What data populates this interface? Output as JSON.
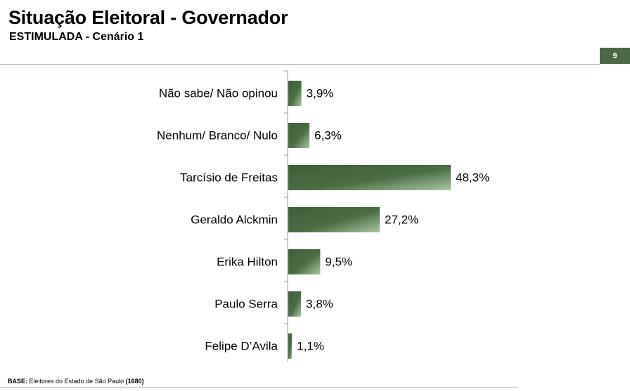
{
  "header": {
    "title": "Situação Eleitoral - Governador",
    "subtitle": "ESTIMULADA - Cenário 1",
    "page_number": "9"
  },
  "footer": {
    "base_label": "BASE:",
    "base_text": " Eleitores do Estado de São Paulo ",
    "base_count": "(1680)"
  },
  "colors": {
    "bar_dark": "#3f5e38",
    "bar_light": "#a9c7a2",
    "accent": "#4a6a44",
    "rule": "#9bb59a"
  },
  "chart_data": {
    "type": "bar",
    "orientation": "horizontal",
    "categories": [
      "Não sabe/ Não opinou",
      "Nenhum/ Branco/ Nulo",
      "Tarcísio de Freitas",
      "Geraldo Alckmin",
      "Erika Hilton",
      "Paulo Serra",
      "Felipe D’Avila"
    ],
    "values": [
      3.9,
      6.3,
      48.3,
      27.2,
      9.5,
      3.8,
      1.1
    ],
    "value_labels": [
      "3,9%",
      "6,3%",
      "48,3%",
      "27,2%",
      "9,5%",
      "3,8%",
      "1,1%"
    ],
    "xlim": [
      0,
      100
    ],
    "grid": false,
    "legend": "none"
  }
}
